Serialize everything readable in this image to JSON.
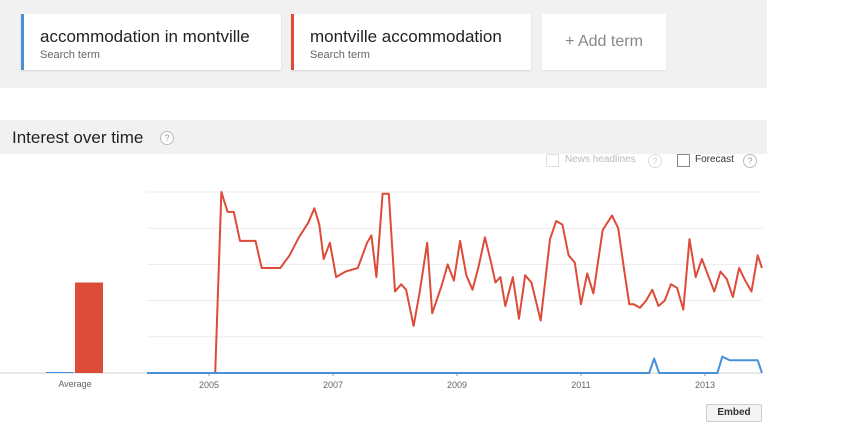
{
  "terms": [
    {
      "name": "accommodation in montville",
      "sub": "Search term",
      "color": "#4a90d9"
    },
    {
      "name": "montville accommodation",
      "sub": "Search term",
      "color": "#dd4b39"
    }
  ],
  "add_term": "+ Add term",
  "section": {
    "title": "Interest over time",
    "help": "?"
  },
  "options": {
    "news": "News headlines",
    "forecast": "Forecast",
    "help": "?"
  },
  "embed": "Embed",
  "chart_data": {
    "type": "line",
    "xlabel": "",
    "ylabel": "",
    "ylim": [
      0,
      100
    ],
    "grid": true,
    "x_ticks": [
      "2005",
      "2007",
      "2009",
      "2011",
      "2013"
    ],
    "x_range": [
      2004.0,
      2013.92
    ],
    "average": {
      "label": "Average",
      "values": [
        {
          "name": "accommodation in montville",
          "value": 0
        },
        {
          "name": "montville accommodation",
          "value": 50
        }
      ]
    },
    "series": [
      {
        "name": "montville accommodation",
        "color": "#dd4b39",
        "points": [
          [
            2004.0,
            0
          ],
          [
            2005.1,
            0
          ],
          [
            2005.2,
            100
          ],
          [
            2005.3,
            89
          ],
          [
            2005.4,
            89
          ],
          [
            2005.5,
            73
          ],
          [
            2005.6,
            73
          ],
          [
            2005.75,
            73
          ],
          [
            2005.85,
            58
          ],
          [
            2006.0,
            58
          ],
          [
            2006.15,
            58
          ],
          [
            2006.3,
            65
          ],
          [
            2006.45,
            75
          ],
          [
            2006.6,
            83
          ],
          [
            2006.7,
            91
          ],
          [
            2006.78,
            82
          ],
          [
            2006.85,
            63
          ],
          [
            2006.95,
            72
          ],
          [
            2007.05,
            53
          ],
          [
            2007.2,
            56
          ],
          [
            2007.4,
            58
          ],
          [
            2007.55,
            72
          ],
          [
            2007.62,
            76
          ],
          [
            2007.7,
            53
          ],
          [
            2007.8,
            99
          ],
          [
            2007.9,
            99
          ],
          [
            2008.0,
            45
          ],
          [
            2008.1,
            49
          ],
          [
            2008.18,
            46
          ],
          [
            2008.3,
            26
          ],
          [
            2008.4,
            45
          ],
          [
            2008.52,
            72
          ],
          [
            2008.6,
            33
          ],
          [
            2008.75,
            48
          ],
          [
            2008.85,
            60
          ],
          [
            2008.95,
            51
          ],
          [
            2009.05,
            73
          ],
          [
            2009.15,
            54
          ],
          [
            2009.25,
            46
          ],
          [
            2009.35,
            59
          ],
          [
            2009.45,
            75
          ],
          [
            2009.55,
            61
          ],
          [
            2009.62,
            50
          ],
          [
            2009.7,
            53
          ],
          [
            2009.78,
            37
          ],
          [
            2009.9,
            53
          ],
          [
            2010.0,
            30
          ],
          [
            2010.1,
            54
          ],
          [
            2010.2,
            50
          ],
          [
            2010.35,
            29
          ],
          [
            2010.5,
            74
          ],
          [
            2010.6,
            84
          ],
          [
            2010.7,
            82
          ],
          [
            2010.8,
            65
          ],
          [
            2010.9,
            61
          ],
          [
            2011.0,
            38
          ],
          [
            2011.1,
            55
          ],
          [
            2011.2,
            44
          ],
          [
            2011.35,
            79
          ],
          [
            2011.5,
            87
          ],
          [
            2011.6,
            80
          ],
          [
            2011.7,
            56
          ],
          [
            2011.78,
            38
          ],
          [
            2011.85,
            38
          ],
          [
            2011.95,
            36
          ],
          [
            2012.05,
            40
          ],
          [
            2012.15,
            46
          ],
          [
            2012.25,
            37
          ],
          [
            2012.35,
            40
          ],
          [
            2012.45,
            49
          ],
          [
            2012.55,
            47
          ],
          [
            2012.65,
            35
          ],
          [
            2012.75,
            74
          ],
          [
            2012.85,
            53
          ],
          [
            2012.95,
            63
          ],
          [
            2013.05,
            54
          ],
          [
            2013.15,
            45
          ],
          [
            2013.25,
            56
          ],
          [
            2013.35,
            52
          ],
          [
            2013.45,
            42
          ],
          [
            2013.55,
            58
          ],
          [
            2013.65,
            51
          ],
          [
            2013.75,
            45
          ],
          [
            2013.85,
            65
          ],
          [
            2013.92,
            58
          ]
        ]
      },
      {
        "name": "accommodation in montville",
        "color": "#4a90d9",
        "points": [
          [
            2004.0,
            0
          ],
          [
            2012.1,
            0
          ],
          [
            2012.18,
            8
          ],
          [
            2012.26,
            0
          ],
          [
            2013.2,
            0
          ],
          [
            2013.28,
            9
          ],
          [
            2013.4,
            7
          ],
          [
            2013.55,
            7
          ],
          [
            2013.75,
            7
          ],
          [
            2013.85,
            7
          ],
          [
            2013.92,
            0
          ]
        ]
      }
    ]
  }
}
